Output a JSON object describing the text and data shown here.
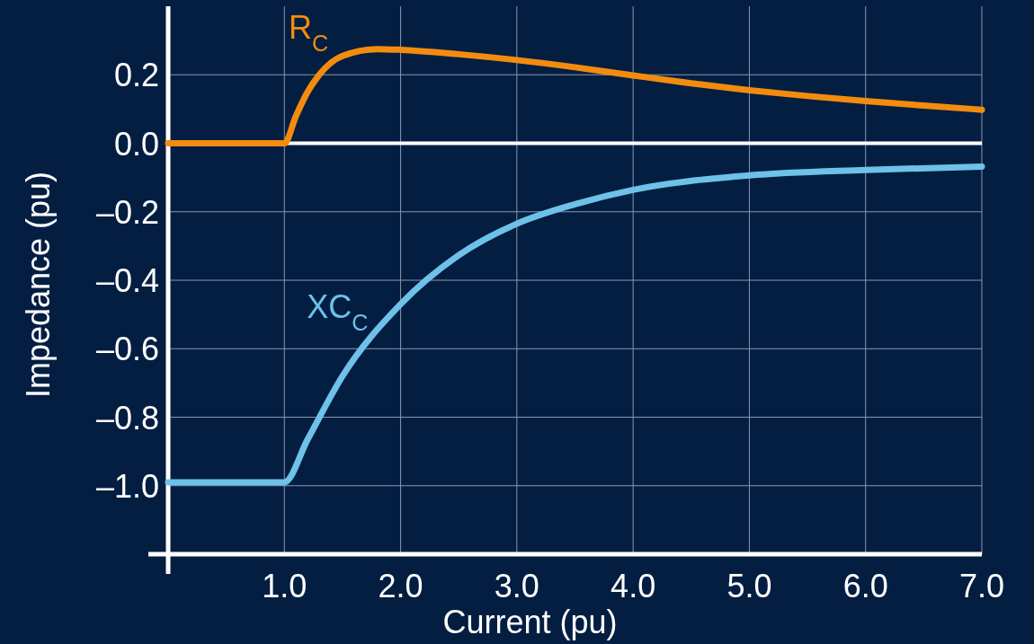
{
  "chart_data": {
    "type": "line",
    "xlabel": "Current (pu)",
    "ylabel": "Impedance (pu)",
    "xlim": [
      0,
      7
    ],
    "ylim": [
      -1.2,
      0.4
    ],
    "xticks": [
      {
        "value": 1,
        "label": "1.0"
      },
      {
        "value": 2,
        "label": "2.0"
      },
      {
        "value": 3,
        "label": "3.0"
      },
      {
        "value": 4,
        "label": "4.0"
      },
      {
        "value": 5,
        "label": "5.0"
      },
      {
        "value": 6,
        "label": "6.0"
      },
      {
        "value": 7,
        "label": "7.0"
      }
    ],
    "yticks": [
      {
        "value": -1,
        "label": "–1.0"
      },
      {
        "value": -0.8,
        "label": "–0.8"
      },
      {
        "value": -0.6,
        "label": "–0.6"
      },
      {
        "value": -0.4,
        "label": "–0.4"
      },
      {
        "value": -0.2,
        "label": "–0.2"
      },
      {
        "value": 0,
        "label": "0.0"
      },
      {
        "value": 0.2,
        "label": "0.2"
      }
    ],
    "grid": true,
    "legend": false,
    "ref_lines": [
      {
        "axis": "y",
        "value": 0,
        "color": "#ffffff"
      }
    ],
    "series": [
      {
        "name": "R$_{C}$",
        "color": "#f28c0f",
        "x": [
          0,
          1,
          1.1,
          1.2,
          1.3,
          1.5,
          1.8,
          2,
          2.5,
          3,
          3.5,
          4,
          4.5,
          5,
          5.5,
          6,
          6.5,
          7
        ],
        "values": [
          0,
          0,
          0.08,
          0.15,
          0.2,
          0.255,
          0.275,
          0.273,
          0.26,
          0.243,
          0.222,
          0.198,
          0.175,
          0.155,
          0.138,
          0.123,
          0.11,
          0.098
        ]
      },
      {
        "name": "XC$_{C}$",
        "color": "#6ec1e8",
        "x": [
          0,
          1,
          1.2,
          1.5,
          2,
          2.5,
          3,
          3.5,
          4,
          5,
          6,
          7
        ],
        "values": [
          -0.99,
          -0.99,
          -0.865,
          -0.68,
          -0.47,
          -0.327,
          -0.235,
          -0.178,
          -0.136,
          -0.094,
          -0.078,
          -0.068
        ]
      }
    ]
  }
}
